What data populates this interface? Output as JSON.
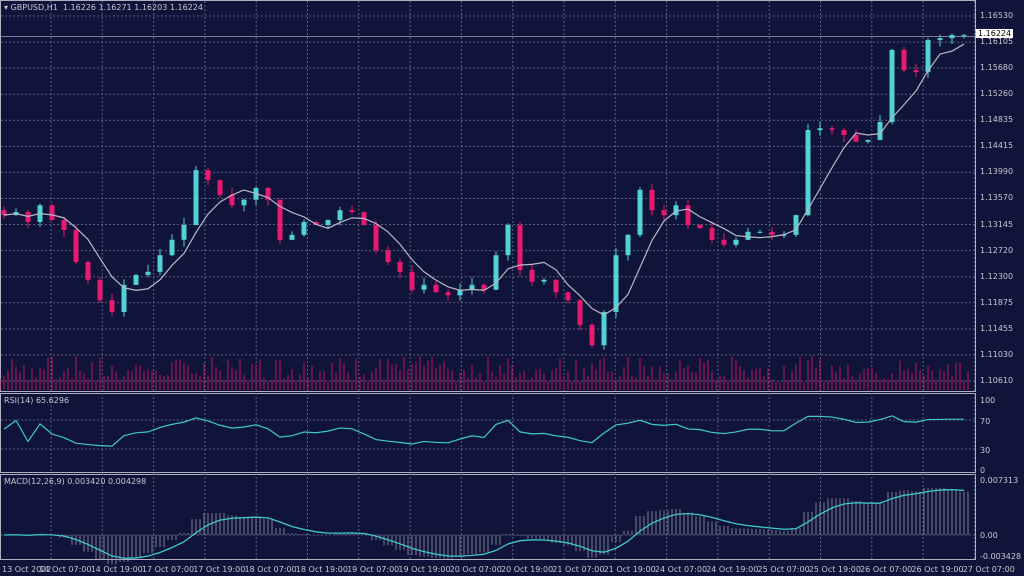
{
  "header": {
    "symbol": "GBPUSD,H1",
    "open": "1.16226",
    "high": "1.16271",
    "low": "1.16203",
    "close": "1.16224"
  },
  "price_axis": [
    "1.16530",
    "1.16105",
    "1.15680",
    "1.15260",
    "1.14835",
    "1.14415",
    "1.13990",
    "1.13570",
    "1.13145",
    "1.12720",
    "1.12300",
    "1.11875",
    "1.11455",
    "1.11030",
    "1.10610"
  ],
  "current_price": "1.16224",
  "rsi": {
    "label": "RSI(14) 65.6296",
    "levels": [
      "100",
      "70",
      "30",
      "0"
    ]
  },
  "macd": {
    "label": "MACD(12,26,9) 0.003420 0.004298",
    "levels": [
      "0.007313",
      "0.00",
      "-0.003428"
    ]
  },
  "time_axis": [
    "13 Oct 2022",
    "14 Oct 07:00",
    "14 Oct 19:00",
    "17 Oct 07:00",
    "17 Oct 19:00",
    "18 Oct 07:00",
    "18 Oct 19:00",
    "19 Oct 07:00",
    "19 Oct 19:00",
    "20 Oct 07:00",
    "20 Oct 19:00",
    "21 Oct 07:00",
    "21 Oct 19:00",
    "24 Oct 07:00",
    "24 Oct 19:00",
    "25 Oct 07:00",
    "25 Oct 19:00",
    "26 Oct 07:00",
    "26 Oct 19:00",
    "27 Oct 07:00"
  ],
  "colors": {
    "bg": "#10133a",
    "bull": "#4fd3d6",
    "bear": "#e8196e",
    "ma": "#b8b8c4",
    "rsi": "#3fc8cc",
    "volume": "#c0155e",
    "grid": "#5a5e80"
  },
  "chart_data": {
    "type": "candlestick",
    "title": "GBPUSD,H1",
    "ylim": [
      1.1061,
      1.1653
    ],
    "close": [
      1.133,
      1.1335,
      1.1319,
      1.1346,
      1.1322,
      1.1306,
      1.1254,
      1.1225,
      1.1192,
      1.1173,
      1.1217,
      1.1233,
      1.1238,
      1.1265,
      1.129,
      1.1314,
      1.1403,
      1.1387,
      1.1363,
      1.1346,
      1.1355,
      1.1374,
      1.1355,
      1.129,
      1.1298,
      1.1319,
      1.1314,
      1.1322,
      1.1338,
      1.1335,
      1.1314,
      1.1273,
      1.1254,
      1.1238,
      1.1209,
      1.1217,
      1.1205,
      1.12,
      1.1209,
      1.1217,
      1.1209,
      1.1265,
      1.1314,
      1.1241,
      1.1222,
      1.1225,
      1.1205,
      1.1192,
      1.1152,
      1.1119,
      1.1173,
      1.1265,
      1.1298,
      1.1371,
      1.1338,
      1.133,
      1.1346,
      1.1314,
      1.1309,
      1.129,
      1.1282,
      1.129,
      1.1303,
      1.1303,
      1.1298,
      1.1298,
      1.133,
      1.1468,
      1.1471,
      1.1468,
      1.146,
      1.1449,
      1.1452,
      1.1481,
      1.1598,
      1.1565,
      1.1562,
      1.1614,
      1.1617,
      1.1622,
      1.16224
    ]
  }
}
